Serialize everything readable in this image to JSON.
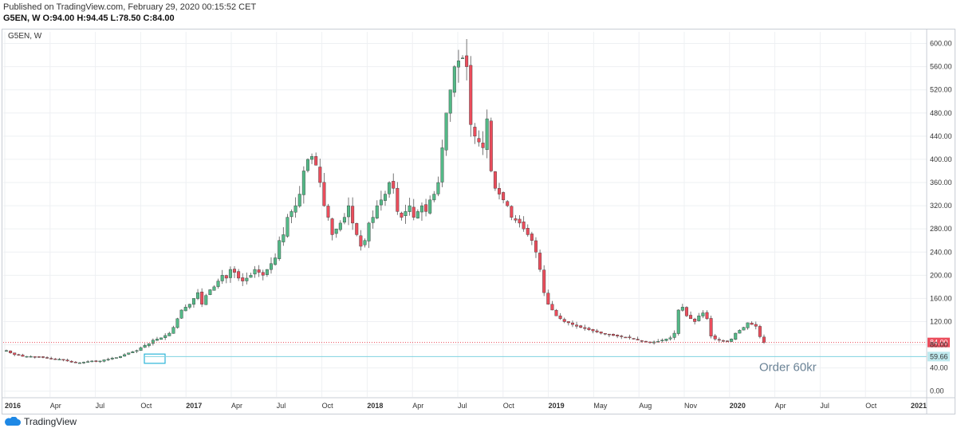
{
  "header": {
    "published": "Published on TradingView.com, February 29, 2020 00:15:52 CET",
    "symbol_interval": "G5EN, W",
    "o_label": "O:",
    "o_value": "94.00",
    "h_label": "H:",
    "h_value": "94.45",
    "l_label": "L:",
    "l_value": "78.50",
    "c_label": "C:",
    "c_value": "84.00"
  },
  "legend": {
    "symbol": "G5EN, W"
  },
  "footer": {
    "brand": "TradingView"
  },
  "colors": {
    "up": "#53b987",
    "down": "#eb4d5c",
    "grid": "#eef0f3",
    "price_line": "#eb4d5c",
    "order_line": "#7fd3e0"
  },
  "chart_data": {
    "type": "candlestick",
    "series_name": "G5EN, W",
    "ylim": [
      -10,
      620
    ],
    "y_ticks": [
      "0.00",
      "40.00",
      "80.00",
      "120.00",
      "160.00",
      "200.00",
      "240.00",
      "280.00",
      "320.00",
      "360.00",
      "400.00",
      "440.00",
      "480.00",
      "520.00",
      "560.00",
      "600.00"
    ],
    "x_ticks": [
      "2016",
      "Apr",
      "Jul",
      "Oct",
      "2017",
      "Apr",
      "Jul",
      "Oct",
      "2018",
      "Apr",
      "Jul",
      "Oct",
      "2019",
      "May",
      "Aug",
      "Nov",
      "2020",
      "Apr",
      "Jul",
      "Oct",
      "2021"
    ],
    "last_price": {
      "value": 84.0,
      "label": "84.00"
    },
    "order_level": {
      "value": 59.66,
      "label": "59.66",
      "annotation": "Order 60kr"
    },
    "closes_approx": [
      70,
      66,
      63,
      62,
      60,
      60,
      60,
      59,
      59,
      58,
      57,
      56,
      55,
      55,
      54,
      52,
      50,
      49,
      49,
      50,
      51,
      52,
      51,
      52,
      54,
      55,
      57,
      58,
      60,
      63,
      66,
      68,
      70,
      75,
      79,
      82,
      88,
      90,
      92,
      96,
      100,
      110,
      125,
      140,
      145,
      150,
      160,
      170,
      150,
      165,
      175,
      180,
      190,
      200,
      195,
      210,
      205,
      195,
      190,
      195,
      200,
      210,
      205,
      200,
      210,
      220,
      230,
      260,
      270,
      300,
      310,
      320,
      340,
      380,
      400,
      405,
      390,
      360,
      320,
      300,
      270,
      280,
      290,
      300,
      320,
      290,
      270,
      250,
      260,
      290,
      300,
      320,
      330,
      340,
      360,
      350,
      310,
      300,
      310,
      320,
      300,
      310,
      320,
      310,
      330,
      340,
      360,
      420,
      480,
      520,
      560,
      570,
      575,
      560,
      460,
      440,
      430,
      420,
      470,
      380,
      350,
      340,
      330,
      320,
      300,
      295,
      290,
      280,
      270,
      260,
      240,
      210,
      170,
      150,
      140,
      130,
      125,
      120,
      118,
      115,
      112,
      110,
      108,
      106,
      104,
      102,
      100,
      99,
      98,
      96,
      95,
      94,
      93,
      92,
      90,
      88,
      86,
      85,
      84,
      85,
      86,
      88,
      90,
      92,
      100,
      140,
      145,
      130,
      125,
      120,
      130,
      135,
      125,
      95,
      90,
      88,
      87,
      86,
      90,
      100,
      105,
      110,
      118,
      115,
      112,
      94,
      84
    ]
  },
  "annotation_box": {
    "label": ""
  }
}
